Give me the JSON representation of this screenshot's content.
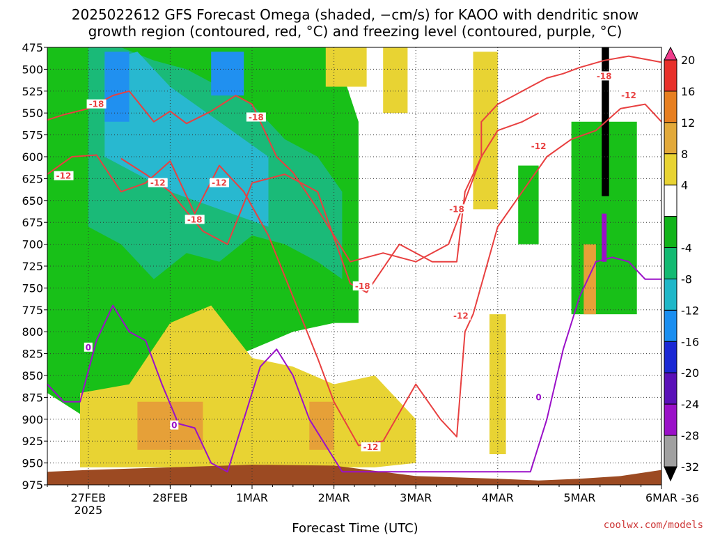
{
  "chart_data": {
    "type": "heatmap",
    "title_lines": [
      "2025022612 GFS Forecast Omega (shaded, −cm/s) for KAOO with dendritic snow",
      "growth region (contoured, red, °C) and freezing level (contoured, purple, °C)"
    ],
    "xlabel": "Forecast Time (UTC)",
    "credit": "coolwx.com/models",
    "x_ticks": [
      {
        "label": "27FEB",
        "sub": "2025",
        "x": 1
      },
      {
        "label": "28FEB",
        "x": 2
      },
      {
        "label": "1MAR",
        "x": 3
      },
      {
        "label": "2MAR",
        "x": 4
      },
      {
        "label": "3MAR",
        "x": 5
      },
      {
        "label": "4MAR",
        "x": 6
      },
      {
        "label": "5MAR",
        "x": 7
      },
      {
        "label": "6MAR",
        "x": 8
      }
    ],
    "xlim": [
      0.5,
      8.0
    ],
    "y_ticks": [
      475,
      500,
      525,
      550,
      575,
      600,
      625,
      650,
      675,
      700,
      725,
      750,
      775,
      800,
      825,
      850,
      875,
      900,
      925,
      950,
      975
    ],
    "ylim": [
      975,
      475
    ],
    "colorbar": {
      "ticks": [
        "20",
        "16",
        "12",
        "8",
        "4",
        "-4",
        "-8",
        "-12",
        "-16",
        "-20",
        "-24",
        "-28",
        "-32",
        "-36"
      ],
      "colors": [
        "#f03c8c",
        "#e8302a",
        "#e77f20",
        "#e2a93a",
        "#e8d333",
        "#ffffff",
        "#12b41a",
        "#13ba72",
        "#1fb7c8",
        "#1a8ef0",
        "#1a28d4",
        "#5a10b8",
        "#9a10c8",
        "#a0a0a0",
        "#000000"
      ]
    },
    "shading": [
      {
        "name": "green",
        "color": "#18c018",
        "regions": [
          {
            "xs": [
              0.5,
              1.0,
              1.5,
              2.0,
              2.5,
              3.0,
              3.5,
              4.0,
              4.3,
              4.3,
              4.0,
              3.5,
              3.0,
              2.5,
              2.0,
              1.5,
              1.0,
              0.5
            ],
            "ps": [
              475,
              475,
              475,
              475,
              475,
              475,
              475,
              475,
              560,
              790,
              790,
              800,
              820,
              840,
              880,
              920,
              900,
              870
            ]
          },
          {
            "xs": [
              6.9,
              7.7,
              7.7,
              6.9
            ],
            "ps": [
              560,
              560,
              780,
              780
            ]
          },
          {
            "xs": [
              6.25,
              6.5,
              6.5,
              6.25
            ],
            "ps": [
              610,
              610,
              700,
              700
            ]
          }
        ]
      },
      {
        "name": "teal",
        "color": "#1aba78",
        "regions": [
          {
            "xs": [
              1.0,
              1.4,
              1.8,
              2.2,
              2.6,
              3.0,
              3.4,
              3.8,
              4.1,
              4.1,
              3.8,
              3.4,
              3.0,
              2.6,
              2.2,
              1.8,
              1.4,
              1.0
            ],
            "ps": [
              475,
              475,
              490,
              500,
              520,
              540,
              580,
              600,
              640,
              740,
              720,
              700,
              690,
              720,
              710,
              740,
              700,
              680
            ]
          }
        ]
      },
      {
        "name": "cyan",
        "color": "#28b8d0",
        "regions": [
          {
            "xs": [
              1.2,
              1.6,
              2.0,
              2.6,
              3.2,
              3.2,
              2.6,
              2.0,
              1.6,
              1.2
            ],
            "ps": [
              490,
              480,
              520,
              560,
              600,
              680,
              660,
              640,
              620,
              600
            ]
          }
        ]
      },
      {
        "name": "blue",
        "color": "#2090f0",
        "regions": [
          {
            "xs": [
              1.2,
              1.5,
              1.5,
              1.2
            ],
            "ps": [
              480,
              480,
              560,
              560
            ]
          },
          {
            "xs": [
              2.5,
              2.9,
              2.9,
              2.5
            ],
            "ps": [
              480,
              480,
              530,
              530
            ]
          }
        ]
      },
      {
        "name": "yellow",
        "color": "#e8d333",
        "regions": [
          {
            "xs": [
              0.9,
              1.5,
              2.0,
              2.5,
              3.0,
              3.5,
              4.0,
              4.5,
              5.0,
              5.0,
              4.5,
              4.0,
              3.5,
              3.0,
              2.5,
              2.0,
              1.5,
              0.9
            ],
            "ps": [
              870,
              860,
              790,
              770,
              830,
              840,
              860,
              850,
              900,
              950,
              955,
              955,
              955,
              955,
              955,
              955,
              955,
              955
            ]
          },
          {
            "xs": [
              3.9,
              4.4,
              4.4,
              3.9
            ],
            "ps": [
              475,
              475,
              520,
              520
            ]
          },
          {
            "xs": [
              4.6,
              4.9,
              4.9,
              4.6
            ],
            "ps": [
              475,
              475,
              550,
              550
            ]
          },
          {
            "xs": [
              5.7,
              6.0,
              6.0,
              5.7
            ],
            "ps": [
              480,
              480,
              660,
              660
            ]
          },
          {
            "xs": [
              5.9,
              6.1,
              6.1,
              5.9
            ],
            "ps": [
              780,
              780,
              940,
              940
            ]
          }
        ]
      },
      {
        "name": "orange",
        "color": "#e6a038",
        "regions": [
          {
            "xs": [
              1.6,
              2.4,
              2.4,
              1.6
            ],
            "ps": [
              880,
              880,
              935,
              935
            ]
          },
          {
            "xs": [
              3.7,
              4.0,
              4.0,
              3.7
            ],
            "ps": [
              880,
              880,
              935,
              935
            ]
          },
          {
            "xs": [
              7.05,
              7.2,
              7.2,
              7.05
            ],
            "ps": [
              700,
              700,
              780,
              780
            ]
          }
        ]
      },
      {
        "name": "black-column",
        "color": "#000000",
        "regions": [
          {
            "xs": [
              7.27,
              7.36,
              7.36,
              7.27
            ],
            "ps": [
              475,
              475,
              645,
              645
            ]
          }
        ]
      },
      {
        "name": "purple-column",
        "color": "#9a10c8",
        "regions": [
          {
            "xs": [
              7.27,
              7.33,
              7.33,
              7.27
            ],
            "ps": [
              665,
              665,
              720,
              720
            ]
          }
        ]
      }
    ],
    "terrain": {
      "color": "#9c4a22",
      "xs": [
        0.5,
        1.0,
        2.0,
        3.0,
        4.0,
        5.0,
        6.0,
        6.5,
        7.0,
        7.5,
        8.0
      ],
      "ps": [
        960,
        958,
        955,
        952,
        953,
        965,
        968,
        970,
        968,
        965,
        958
      ]
    },
    "contours": [
      {
        "name": "-18 upper",
        "color": "#e84040",
        "label": "-18",
        "labels": [
          [
            1.1,
            540
          ],
          [
            3.05,
            555
          ],
          [
            7.3,
            508
          ]
        ],
        "xs": [
          0.5,
          0.7,
          1.0,
          1.3,
          1.5,
          1.8,
          2.0,
          2.2,
          2.5,
          2.8,
          3.0,
          3.3,
          3.5,
          3.8,
          4.2,
          4.6,
          5.0,
          5.4,
          5.8,
          5.8,
          6.0,
          6.2,
          6.4,
          6.6,
          6.8,
          7.0,
          7.3,
          7.6,
          8.0
        ],
        "ps": [
          558,
          552,
          545,
          530,
          525,
          560,
          548,
          562,
          548,
          530,
          540,
          600,
          618,
          660,
          720,
          710,
          720,
          700,
          600,
          560,
          540,
          530,
          520,
          510,
          505,
          498,
          490,
          485,
          492
        ]
      },
      {
        "name": "-18 lower",
        "color": "#e84040",
        "label": "-18",
        "labels": [
          [
            2.3,
            672
          ],
          [
            4.35,
            748
          ],
          [
            5.5,
            660
          ]
        ],
        "xs": [
          1.4,
          1.7,
          2.0,
          2.4,
          2.7,
          3.0,
          3.4,
          3.8,
          4.2,
          4.4,
          4.8,
          5.2,
          5.5,
          5.6,
          5.8,
          6.0,
          6.3,
          6.5
        ],
        "ps": [
          602,
          620,
          640,
          685,
          700,
          630,
          620,
          640,
          745,
          755,
          700,
          720,
          720,
          640,
          600,
          570,
          560,
          550
        ]
      },
      {
        "name": "-12",
        "color": "#e84040",
        "label": "-12",
        "labels": [
          [
            0.7,
            622
          ],
          [
            1.85,
            630
          ],
          [
            2.6,
            630
          ],
          [
            4.45,
            932
          ],
          [
            5.55,
            782
          ],
          [
            6.5,
            588
          ],
          [
            7.6,
            530
          ]
        ],
        "xs": [
          0.5,
          0.8,
          1.1,
          1.4,
          1.7,
          2.0,
          2.3,
          2.6,
          2.9,
          3.2,
          3.5,
          3.8,
          4.0,
          4.3,
          4.6,
          5.0,
          5.3,
          5.5,
          5.6,
          5.7,
          6.0,
          6.3,
          6.6,
          6.9,
          7.2,
          7.5,
          7.8,
          8.0
        ],
        "ps": [
          620,
          600,
          598,
          640,
          630,
          605,
          665,
          610,
          640,
          690,
          760,
          830,
          880,
          930,
          925,
          860,
          900,
          920,
          800,
          780,
          680,
          640,
          600,
          580,
          570,
          545,
          540,
          560
        ]
      },
      {
        "name": "0 freezing",
        "color": "#9a10c8",
        "label": "0",
        "labels": [
          [
            1.0,
            818
          ],
          [
            2.05,
            907
          ],
          [
            6.5,
            875
          ]
        ],
        "xs": [
          0.5,
          0.7,
          0.9,
          1.1,
          1.3,
          1.5,
          1.7,
          1.9,
          2.1,
          2.3,
          2.5,
          2.7,
          2.9,
          3.1,
          3.3,
          3.5,
          3.7,
          3.9,
          4.1,
          4.1,
          6.4,
          6.6,
          6.8,
          7.0,
          7.2,
          7.4,
          7.6,
          7.8,
          8.0
        ],
        "ps": [
          860,
          880,
          880,
          810,
          770,
          800,
          810,
          860,
          905,
          910,
          950,
          960,
          900,
          840,
          820,
          850,
          900,
          930,
          960,
          960,
          960,
          900,
          820,
          760,
          720,
          715,
          720,
          740,
          740
        ]
      }
    ]
  }
}
